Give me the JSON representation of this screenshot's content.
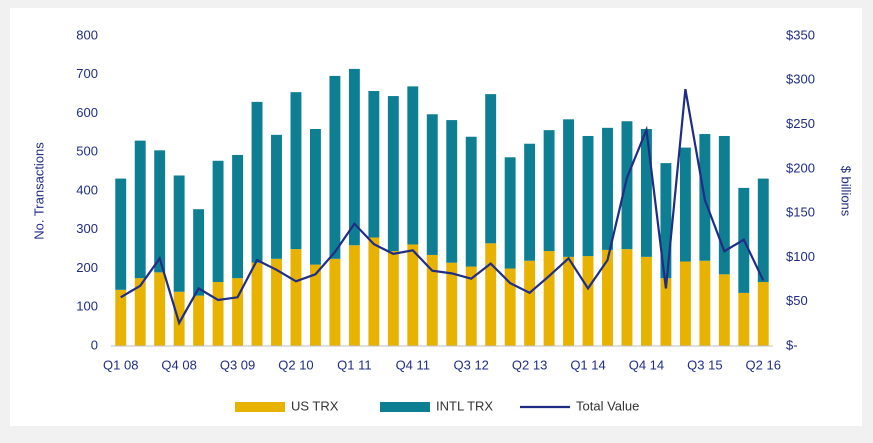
{
  "chart_data": {
    "type": "bar",
    "y_label": "No. Transactions",
    "y2_label": "$ billions",
    "categories": [
      "Q1 08",
      null,
      null,
      "Q4 08",
      null,
      null,
      "Q3 09",
      null,
      null,
      "Q2 10",
      null,
      null,
      "Q1 11",
      null,
      null,
      "Q4 11",
      null,
      null,
      "Q3 12",
      null,
      null,
      "Q2 13",
      null,
      null,
      "Q1 14",
      null,
      null,
      "Q4 14",
      null,
      null,
      "Q3 15",
      null,
      null,
      "Q2 16"
    ],
    "series": [
      {
        "name": "US TRX",
        "color": "#e8b200",
        "stack": true,
        "values": [
          145,
          175,
          190,
          140,
          130,
          165,
          175,
          215,
          225,
          250,
          210,
          225,
          260,
          280,
          245,
          262,
          235,
          215,
          205,
          265,
          200,
          220,
          245,
          230,
          232,
          248,
          250,
          230,
          175,
          218,
          220,
          185,
          137,
          165
        ]
      },
      {
        "name": "INTL TRX",
        "color": "#0e7f93",
        "stack": true,
        "values": [
          287,
          355,
          315,
          300,
          223,
          313,
          318,
          415,
          320,
          405,
          350,
          472,
          455,
          378,
          400,
          408,
          363,
          368,
          335,
          385,
          287,
          302,
          312,
          355,
          310,
          315,
          330,
          330,
          297,
          294,
          327,
          357,
          271,
          267
        ]
      },
      {
        "name": "Total Value",
        "color": "#1f2d86",
        "type": "line",
        "axis": "y2",
        "values": [
          55,
          68,
          99,
          26,
          65,
          52,
          55,
          97,
          86,
          73,
          81,
          106,
          138,
          115,
          104,
          108,
          85,
          82,
          76,
          93,
          71,
          60,
          79,
          99,
          65,
          97,
          190,
          244,
          65,
          290,
          165,
          107,
          120,
          74
        ]
      }
    ],
    "ylim": [
      0,
      800
    ],
    "yticks": [
      0,
      100,
      200,
      300,
      400,
      500,
      600,
      700,
      800
    ],
    "y2lim": [
      0,
      350
    ],
    "y2ticks": [
      {
        "value": 0,
        "label": "$-"
      },
      {
        "value": 50,
        "label": "$50"
      },
      {
        "value": 100,
        "label": "$100"
      },
      {
        "value": 150,
        "label": "$150"
      },
      {
        "value": 200,
        "label": "$200"
      },
      {
        "value": 250,
        "label": "$250"
      },
      {
        "value": 300,
        "label": "$300"
      },
      {
        "value": 350,
        "label": "$350"
      }
    ],
    "legend": "bottom"
  }
}
